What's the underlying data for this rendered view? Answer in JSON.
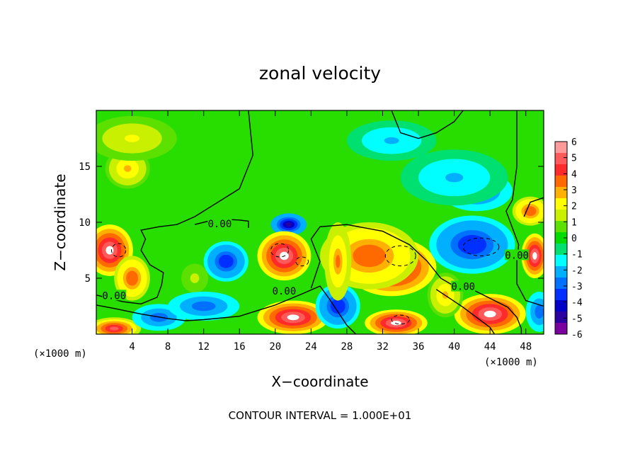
{
  "chart_data": {
    "type": "heatmap",
    "title": "zonal velocity",
    "xlabel": "X−coordinate",
    "ylabel": "Z−coordinate",
    "x_unit_left": "(×1000 m)",
    "x_unit_right": "(×1000 m)",
    "xlim": [
      0,
      50
    ],
    "ylim": [
      0,
      20
    ],
    "x_ticks": [
      4,
      8,
      12,
      16,
      20,
      24,
      28,
      32,
      36,
      40,
      44,
      48
    ],
    "y_ticks": [
      5,
      10,
      15
    ],
    "footer": "CONTOUR INTERVAL = 1.000E+01",
    "colorbar": {
      "ticks": [
        6,
        5,
        4,
        3,
        2,
        1,
        0,
        -1,
        -2,
        -3,
        -4,
        -5,
        -6
      ],
      "colors": [
        "#ff9a9a",
        "#ff5a5a",
        "#ff2a2a",
        "#ff6a00",
        "#ffb000",
        "#ffff00",
        "#c8f000",
        "#5ce000",
        "#00dc00",
        "#00e070",
        "#00ffff",
        "#00b0ff",
        "#0070ff",
        "#0030ff",
        "#0000c8",
        "#2a00a0",
        "#7a00a0"
      ]
    },
    "contour_labels": [
      {
        "text": "0.00",
        "x": 13.8,
        "y": 9.8
      },
      {
        "text": "0.00",
        "x": 2.0,
        "y": 3.4
      },
      {
        "text": "0.00",
        "x": 21.0,
        "y": 3.8
      },
      {
        "text": "0.00",
        "x": 41.0,
        "y": 4.2
      },
      {
        "text": "0.00",
        "x": 47.0,
        "y": 7.0
      }
    ],
    "features": [
      {
        "u": 3.0,
        "x": 3.5,
        "y": 14.8,
        "rx": 2.5,
        "ry": 1.8
      },
      {
        "u": 2.0,
        "x": 4.0,
        "y": 17.5,
        "rx": 5.0,
        "ry": 2.0
      },
      {
        "u": -2.0,
        "x": 33.0,
        "y": 17.3,
        "rx": 5.0,
        "ry": 1.8
      },
      {
        "u": -3.0,
        "x": 42.5,
        "y": 12.8,
        "rx": 4.0,
        "ry": 1.8
      },
      {
        "u": -2.0,
        "x": 40.0,
        "y": 14.0,
        "rx": 6.0,
        "ry": 2.5
      },
      {
        "u": 6.0,
        "x": 1.5,
        "y": 7.5,
        "rx": 2.6,
        "ry": 2.3
      },
      {
        "u": 4.0,
        "x": 4.0,
        "y": 5.0,
        "rx": 2.0,
        "ry": 2.0
      },
      {
        "u": -4.0,
        "x": 14.5,
        "y": 6.5,
        "rx": 2.5,
        "ry": 1.8
      },
      {
        "u": 1.5,
        "x": 11.0,
        "y": 5.0,
        "rx": 1.5,
        "ry": 1.3
      },
      {
        "u": -5.0,
        "x": 21.5,
        "y": 9.8,
        "rx": 2.0,
        "ry": 1.0
      },
      {
        "u": 6.0,
        "x": 21.0,
        "y": 7.0,
        "rx": 3.0,
        "ry": 2.2
      },
      {
        "u": 6.0,
        "x": 33.0,
        "y": 6.0,
        "rx": 5.0,
        "ry": 2.6
      },
      {
        "u": 4.0,
        "x": 30.5,
        "y": 7.0,
        "rx": 5.5,
        "ry": 3.0
      },
      {
        "u": 6.0,
        "x": 42.0,
        "y": 7.5,
        "rx": 3.5,
        "ry": 2.0
      },
      {
        "u": -4.0,
        "x": 42.0,
        "y": 8.0,
        "rx": 4.8,
        "ry": 2.6
      },
      {
        "u": 6.0,
        "x": 49.0,
        "y": 7.0,
        "rx": 1.5,
        "ry": 2.0
      },
      {
        "u": 4.0,
        "x": 48.5,
        "y": 11.0,
        "rx": 2.0,
        "ry": 1.3
      },
      {
        "u": 6.0,
        "x": 22.0,
        "y": 1.5,
        "rx": 4.0,
        "ry": 1.5
      },
      {
        "u": 6.0,
        "x": 33.5,
        "y": 1.0,
        "rx": 3.5,
        "ry": 1.2
      },
      {
        "u": 6.0,
        "x": 44.0,
        "y": 1.8,
        "rx": 4.0,
        "ry": 1.8
      },
      {
        "u": -4.0,
        "x": 27.0,
        "y": 2.5,
        "rx": 2.5,
        "ry": 2.0
      },
      {
        "u": 3.5,
        "x": 27.0,
        "y": 6.5,
        "rx": 1.5,
        "ry": 3.5
      },
      {
        "u": 3.0,
        "x": 39.0,
        "y": 3.5,
        "rx": 2.0,
        "ry": 2.0
      },
      {
        "u": -3.0,
        "x": 49.5,
        "y": 2.0,
        "rx": 1.5,
        "ry": 1.8
      },
      {
        "u": 5.0,
        "x": 2.0,
        "y": 0.5,
        "rx": 3.0,
        "ry": 1.0
      },
      {
        "u": -3.0,
        "x": 7.0,
        "y": 1.5,
        "rx": 3.0,
        "ry": 1.2
      },
      {
        "u": -3.0,
        "x": 12.0,
        "y": 2.5,
        "rx": 4.0,
        "ry": 1.3
      }
    ]
  }
}
